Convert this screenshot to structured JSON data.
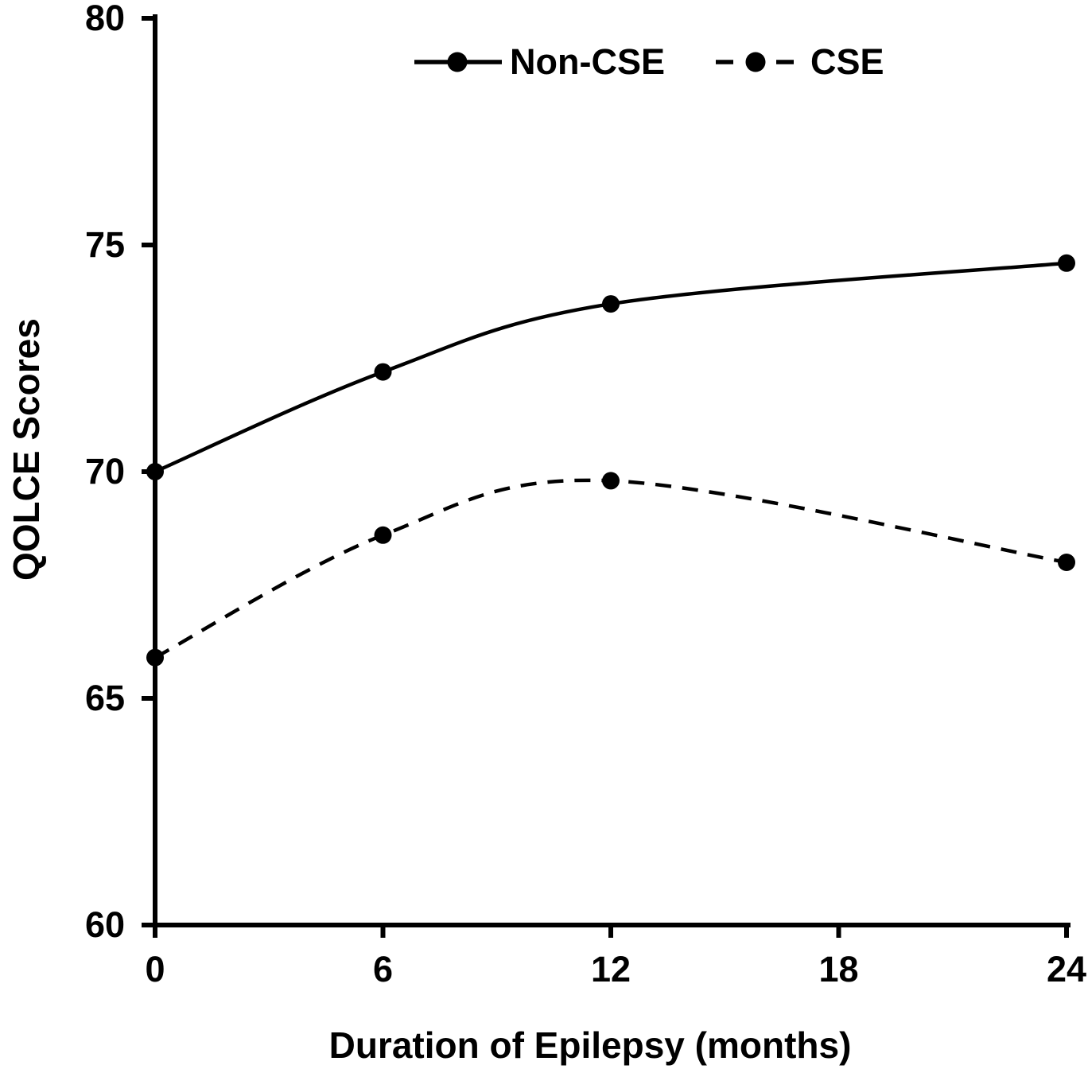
{
  "chart_data": {
    "type": "line",
    "title": "",
    "xlabel": "Duration of Epilepsy (months)",
    "ylabel": "QOLCE Scores",
    "x": [
      0,
      6,
      12,
      24
    ],
    "series": [
      {
        "name": "Non-CSE",
        "line_style": "solid",
        "marker": "circle",
        "color": "#000000",
        "values": [
          70.0,
          72.2,
          73.7,
          74.6
        ]
      },
      {
        "name": "CSE",
        "line_style": "dashed",
        "marker": "circle",
        "color": "#000000",
        "values": [
          65.9,
          68.6,
          69.8,
          68.0
        ]
      }
    ],
    "xlim": [
      0,
      24
    ],
    "ylim": [
      60,
      80
    ],
    "xticks": [
      0,
      6,
      12,
      18,
      24
    ],
    "yticks": [
      60,
      65,
      70,
      75,
      80
    ],
    "grid": false,
    "legend_position": "top-center",
    "smoothed_lines": true,
    "background": "#ffffff",
    "axis_color": "#000000"
  }
}
